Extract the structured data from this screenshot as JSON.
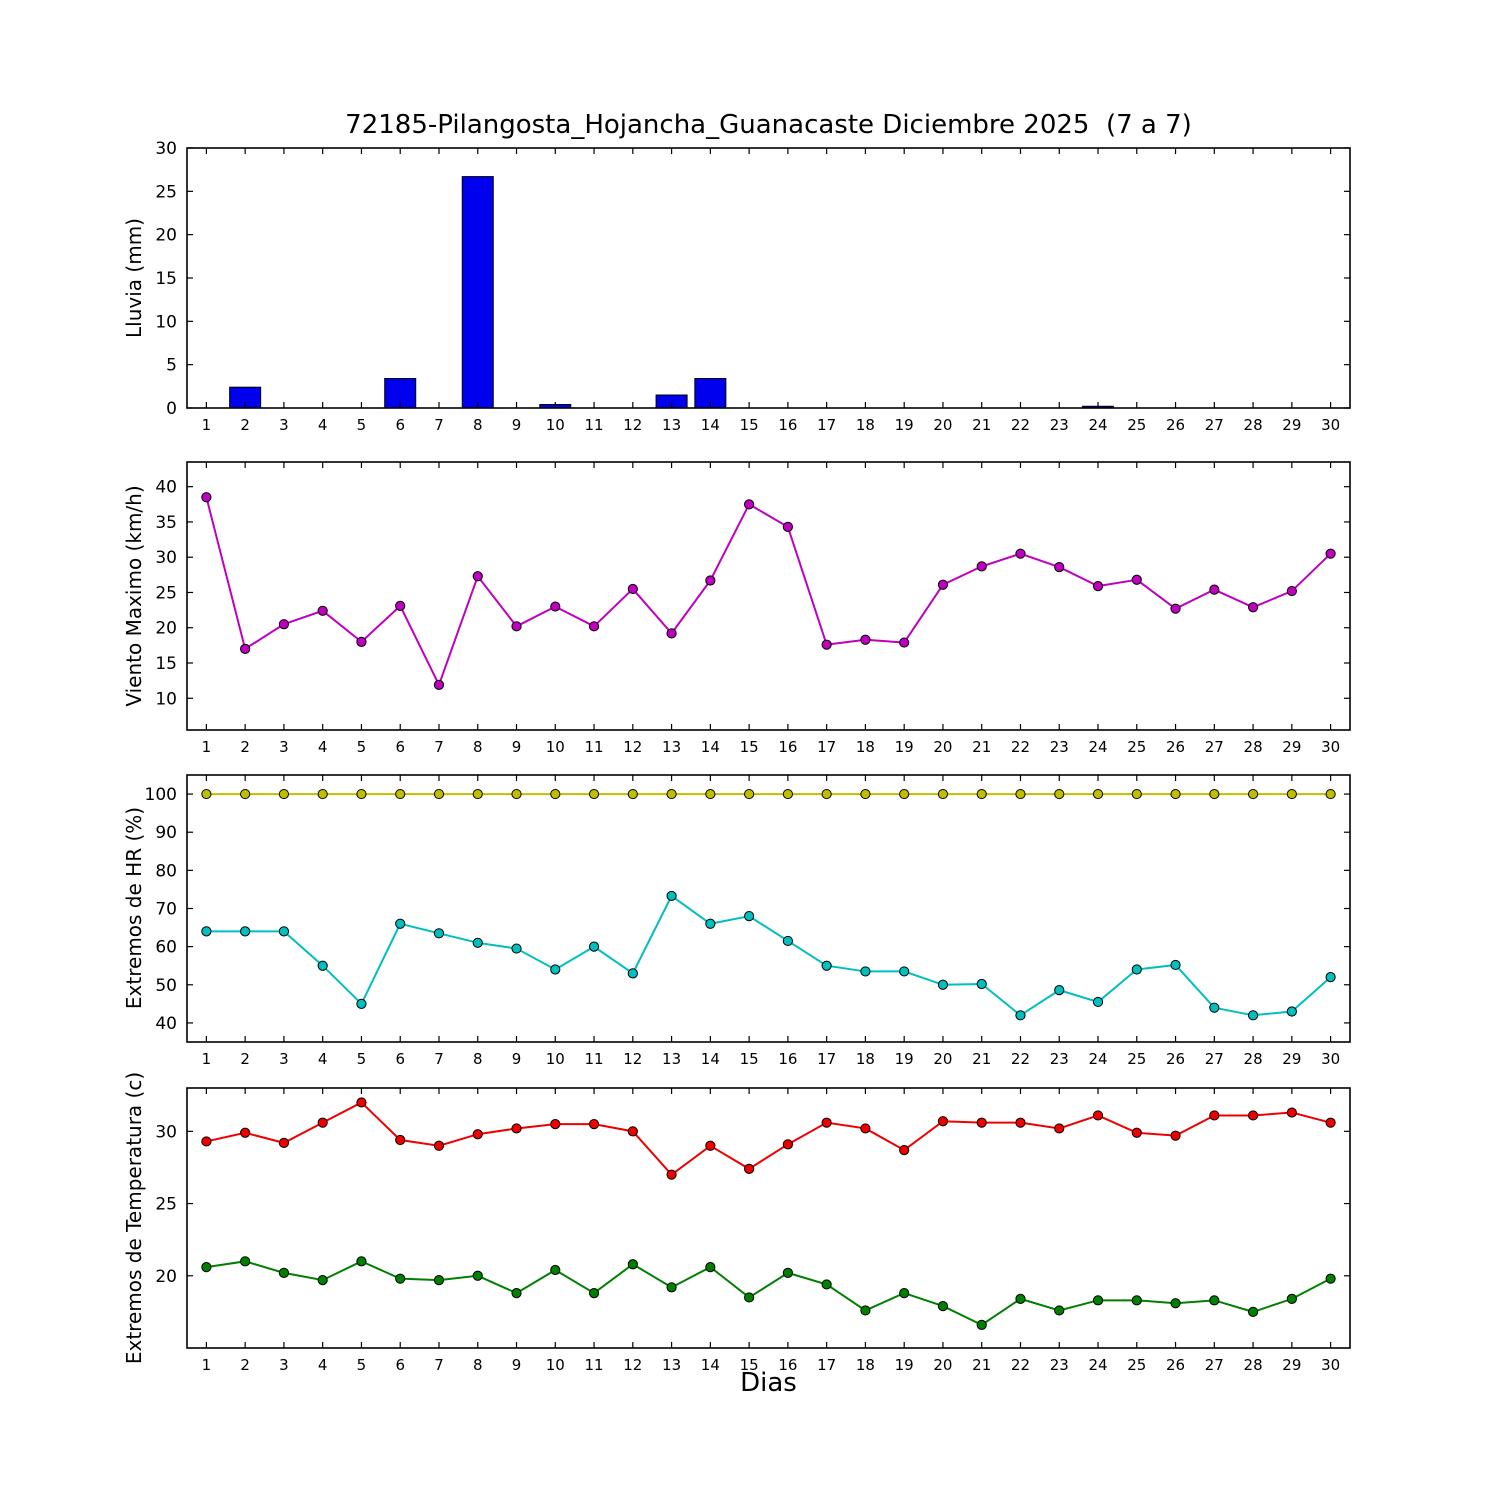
{
  "title": "72185-Pilangosta_Hojancha_Guanacaste Diciembre 2025  (7 a 7)",
  "xlabel": "Dias",
  "chart_data": [
    {
      "name": "lluvia",
      "type": "bar",
      "ylabel": "Lluvia (mm)",
      "ylim": [
        0,
        30
      ],
      "yticks": [
        0,
        5,
        10,
        15,
        20,
        25,
        30
      ],
      "bar_color": "#0000ee",
      "categories": [
        1,
        2,
        3,
        4,
        5,
        6,
        7,
        8,
        9,
        10,
        11,
        12,
        13,
        14,
        15,
        16,
        17,
        18,
        19,
        20,
        21,
        22,
        23,
        24,
        25,
        26,
        27,
        28,
        29,
        30
      ],
      "values": [
        0,
        2.4,
        0,
        0,
        0,
        3.4,
        0,
        26.7,
        0,
        0.4,
        0,
        0,
        1.5,
        3.4,
        0,
        0,
        0,
        0,
        0,
        0,
        0,
        0,
        0,
        0.2,
        0,
        0,
        0,
        0,
        0,
        0
      ]
    },
    {
      "name": "viento-maximo",
      "type": "line",
      "ylabel": "Viento Maximo (km/h)",
      "ylim": [
        5.5,
        43.5
      ],
      "yticks": [
        10,
        15,
        20,
        25,
        30,
        35,
        40
      ],
      "categories": [
        1,
        2,
        3,
        4,
        5,
        6,
        7,
        8,
        9,
        10,
        11,
        12,
        13,
        14,
        15,
        16,
        17,
        18,
        19,
        20,
        21,
        22,
        23,
        24,
        25,
        26,
        27,
        28,
        29,
        30
      ],
      "series": [
        {
          "name": "viento_maximo",
          "color": "#bf00bf",
          "values": [
            38.5,
            17.0,
            20.5,
            22.4,
            18.0,
            23.1,
            11.9,
            27.3,
            20.2,
            23.0,
            20.2,
            25.5,
            19.2,
            26.7,
            37.5,
            34.3,
            17.6,
            18.3,
            17.9,
            26.1,
            28.7,
            30.5,
            28.6,
            25.9,
            26.8,
            22.7,
            25.4,
            22.9,
            25.2,
            30.5
          ]
        }
      ]
    },
    {
      "name": "extremos-hr",
      "type": "line",
      "ylabel": "Extremos de HR (%)",
      "ylim": [
        35,
        105
      ],
      "yticks": [
        40,
        50,
        60,
        70,
        80,
        90,
        100
      ],
      "categories": [
        1,
        2,
        3,
        4,
        5,
        6,
        7,
        8,
        9,
        10,
        11,
        12,
        13,
        14,
        15,
        16,
        17,
        18,
        19,
        20,
        21,
        22,
        23,
        24,
        25,
        26,
        27,
        28,
        29,
        30
      ],
      "series": [
        {
          "name": "hr_max",
          "color": "#bfbf00",
          "values": [
            100,
            100,
            100,
            100,
            100,
            100,
            100,
            100,
            100,
            100,
            100,
            100,
            100,
            100,
            100,
            100,
            100,
            100,
            100,
            100,
            100,
            100,
            100,
            100,
            100,
            100,
            100,
            100,
            100,
            100
          ]
        },
        {
          "name": "hr_min",
          "color": "#00bfbf",
          "values": [
            64,
            64,
            64,
            55,
            45,
            66,
            63.5,
            61,
            59.5,
            54,
            60,
            53,
            73.3,
            66,
            68,
            61.5,
            55,
            53.5,
            53.5,
            50,
            50.2,
            42,
            48.6,
            45.5,
            54,
            55.2,
            44,
            42,
            43,
            52
          ]
        }
      ]
    },
    {
      "name": "extremos-temperatura",
      "type": "line",
      "ylabel": "Extremos de Temperatura (c)",
      "ylim": [
        15,
        33
      ],
      "yticks": [
        20,
        25,
        30
      ],
      "categories": [
        1,
        2,
        3,
        4,
        5,
        6,
        7,
        8,
        9,
        10,
        11,
        12,
        13,
        14,
        15,
        16,
        17,
        18,
        19,
        20,
        21,
        22,
        23,
        24,
        25,
        26,
        27,
        28,
        29,
        30
      ],
      "series": [
        {
          "name": "temp_max",
          "color": "#ee0000",
          "values": [
            29.3,
            29.9,
            29.2,
            30.6,
            32.0,
            29.4,
            29.0,
            29.8,
            30.2,
            30.5,
            30.5,
            30.0,
            27.0,
            29.0,
            27.4,
            29.1,
            30.6,
            30.2,
            28.7,
            30.7,
            30.6,
            30.6,
            30.2,
            31.1,
            29.9,
            29.7,
            31.1,
            31.1,
            31.3,
            30.6
          ]
        },
        {
          "name": "temp_min",
          "color": "#008000",
          "values": [
            20.6,
            21.0,
            20.2,
            19.7,
            21.0,
            19.8,
            19.7,
            20.0,
            18.8,
            20.4,
            18.8,
            20.8,
            19.2,
            20.6,
            18.5,
            20.2,
            19.4,
            17.6,
            18.8,
            17.9,
            16.6,
            18.4,
            17.6,
            18.3,
            18.3,
            18.1,
            18.3,
            17.5,
            18.4,
            19.8
          ]
        }
      ]
    }
  ]
}
